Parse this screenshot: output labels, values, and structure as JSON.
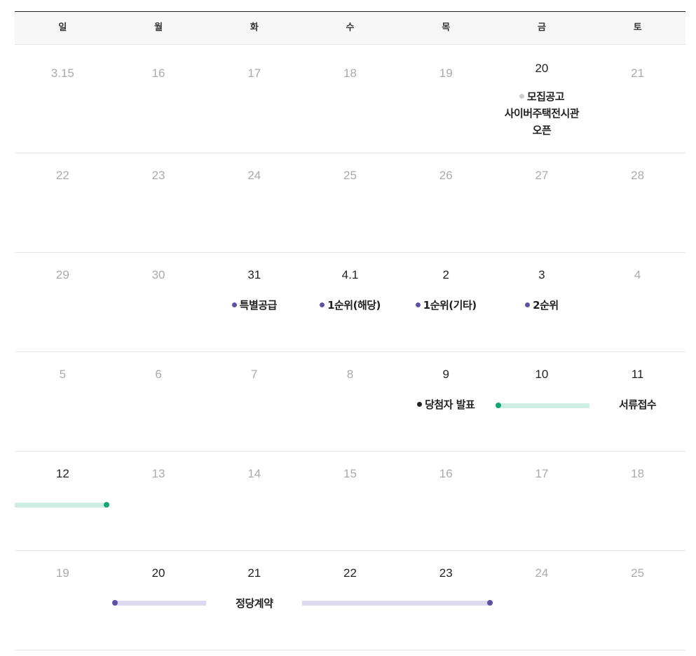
{
  "weekdays": [
    {
      "label": "일",
      "color": "#e8334a"
    },
    {
      "label": "월",
      "color": "#333333"
    },
    {
      "label": "화",
      "color": "#333333"
    },
    {
      "label": "수",
      "color": "#333333"
    },
    {
      "label": "목",
      "color": "#333333"
    },
    {
      "label": "금",
      "color": "#333333"
    },
    {
      "label": "토",
      "color": "#333333"
    }
  ],
  "colors": {
    "purple": "#5b52a8",
    "purple_bar": "#dcdaee",
    "green": "#13a673",
    "green_bar": "#cdeee2",
    "gray": "#cccccc",
    "black": "#222222"
  },
  "weeks": [
    {
      "days": [
        {
          "label": "3.15"
        },
        {
          "label": "16"
        },
        {
          "label": "17"
        },
        {
          "label": "18"
        },
        {
          "label": "19"
        },
        {
          "label": "20",
          "active": true
        },
        {
          "label": "21"
        }
      ],
      "events": [
        {
          "col": 5,
          "text": "모집공고\n사이버주택전시관\n오픈",
          "dot": "gray"
        }
      ],
      "bars": []
    },
    {
      "days": [
        {
          "label": "22"
        },
        {
          "label": "23"
        },
        {
          "label": "24"
        },
        {
          "label": "25"
        },
        {
          "label": "26"
        },
        {
          "label": "27"
        },
        {
          "label": "28"
        }
      ],
      "events": [],
      "bars": []
    },
    {
      "days": [
        {
          "label": "29"
        },
        {
          "label": "30"
        },
        {
          "label": "31",
          "active": true
        },
        {
          "label": "4.1",
          "active": true
        },
        {
          "label": "2",
          "active": true
        },
        {
          "label": "3",
          "active": true
        },
        {
          "label": "4"
        }
      ],
      "events": [
        {
          "col": 2,
          "text": "특별공급",
          "dot": "purple"
        },
        {
          "col": 3,
          "text": "1순위(해당)",
          "dot": "purple"
        },
        {
          "col": 4,
          "text": "1순위(기타)",
          "dot": "purple"
        },
        {
          "col": 5,
          "text": "2순위",
          "dot": "purple"
        }
      ],
      "bars": []
    },
    {
      "days": [
        {
          "label": "5"
        },
        {
          "label": "6"
        },
        {
          "label": "7"
        },
        {
          "label": "8"
        },
        {
          "label": "9",
          "active": true
        },
        {
          "label": "10",
          "active": true
        },
        {
          "label": "11",
          "active": true
        }
      ],
      "events": [
        {
          "col": 4,
          "text": "당첨자 발표",
          "dot": "black"
        },
        {
          "col": 6,
          "text": "서류접수"
        }
      ],
      "bars": [
        {
          "from": 5,
          "to": 5,
          "color": "green",
          "start_dot": true,
          "end_dot": false
        }
      ]
    },
    {
      "days": [
        {
          "label": "12",
          "active": true
        },
        {
          "label": "13"
        },
        {
          "label": "14"
        },
        {
          "label": "15"
        },
        {
          "label": "16"
        },
        {
          "label": "17"
        },
        {
          "label": "18"
        }
      ],
      "events": [],
      "bars": [
        {
          "from": 0,
          "to": 0,
          "color": "green",
          "start_dot": false,
          "end_dot": true
        }
      ]
    },
    {
      "days": [
        {
          "label": "19"
        },
        {
          "label": "20",
          "active": true
        },
        {
          "label": "21",
          "active": true
        },
        {
          "label": "22",
          "active": true
        },
        {
          "label": "23",
          "active": true
        },
        {
          "label": "24"
        },
        {
          "label": "25"
        }
      ],
      "events": [
        {
          "col": 2,
          "text": "정당계약"
        }
      ],
      "bars": [
        {
          "from": 1,
          "to": 1,
          "color": "purple",
          "start_dot": true,
          "end_dot": false
        },
        {
          "from": 3,
          "to": 4,
          "color": "purple",
          "start_dot": false,
          "end_dot": true
        }
      ]
    }
  ]
}
